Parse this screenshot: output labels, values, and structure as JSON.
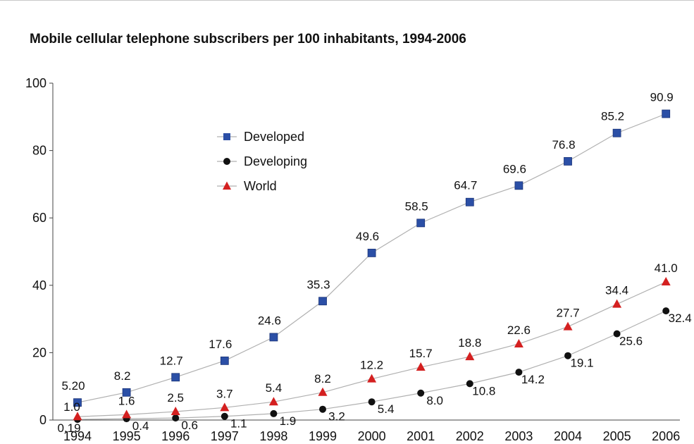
{
  "chart_data": {
    "type": "line",
    "title": "Mobile cellular telephone subscribers per 100 inhabitants, 1994-2006",
    "xlabel": "",
    "ylabel": "",
    "ylim": [
      0,
      100
    ],
    "yticks": [
      0,
      20,
      40,
      60,
      80,
      100
    ],
    "categories": [
      "1994",
      "1995",
      "1996",
      "1997",
      "1998",
      "1999",
      "2000",
      "2001",
      "2002",
      "2003",
      "2004",
      "2005",
      "2006"
    ],
    "grid": false,
    "legend_position": "upper-left",
    "series": [
      {
        "name": "Developed",
        "marker": "square",
        "color": "#2b4fa6",
        "values": [
          5.2,
          8.2,
          12.7,
          17.6,
          24.6,
          35.3,
          49.6,
          58.5,
          64.7,
          69.6,
          76.8,
          85.2,
          90.9
        ],
        "labels": [
          "5.20",
          "8.2",
          "12.7",
          "17.6",
          "24.6",
          "35.3",
          "49.6",
          "58.5",
          "64.7",
          "69.6",
          "76.8",
          "85.2",
          "90.9"
        ]
      },
      {
        "name": "Developing",
        "marker": "circle",
        "color": "#111111",
        "values": [
          0.19,
          0.4,
          0.6,
          1.1,
          1.9,
          3.2,
          5.4,
          8.0,
          10.8,
          14.2,
          19.1,
          25.6,
          32.4
        ],
        "labels": [
          "0.19",
          "0.4",
          "0.6",
          "1.1",
          "1.9",
          "3.2",
          "5.4",
          "8.0",
          "10.8",
          "14.2",
          "19.1",
          "25.6",
          "32.4"
        ]
      },
      {
        "name": "World",
        "marker": "triangle",
        "color": "#d42020",
        "values": [
          1.0,
          1.6,
          2.5,
          3.7,
          5.4,
          8.2,
          12.2,
          15.7,
          18.8,
          22.6,
          27.7,
          34.4,
          41.0
        ],
        "labels": [
          "1.0",
          "1.6",
          "2.5",
          "3.7",
          "5.4",
          "8.2",
          "12.2",
          "15.7",
          "18.8",
          "22.6",
          "27.7",
          "34.4",
          "41.0"
        ]
      }
    ]
  }
}
